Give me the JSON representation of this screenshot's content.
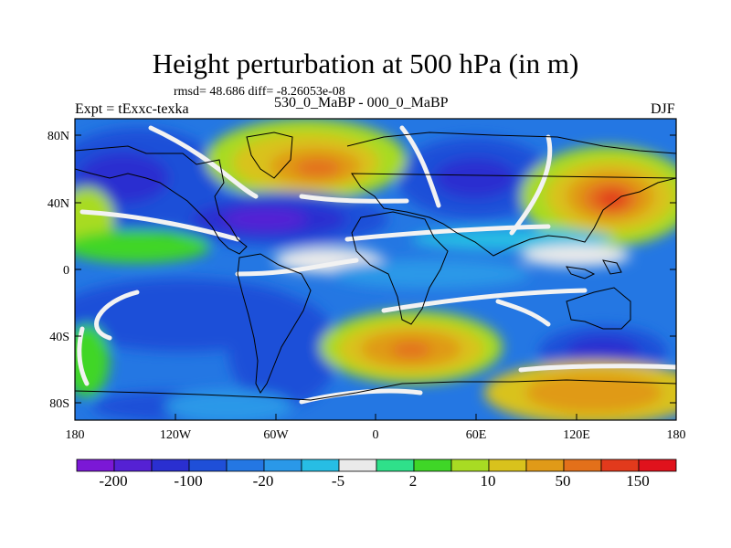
{
  "title": "Height perturbation at 500 hPa (in m)",
  "stats": "rmsd= 48.686 diff= -8.26053e-08",
  "experiment": "Expt = tExxc-texka",
  "period": "530_0_MaBP - 000_0_MaBP",
  "season": "DJF",
  "map": {
    "projection": "cylindrical-equidistant",
    "lon_range": [
      -180,
      180
    ],
    "lat_range": [
      -90,
      90
    ],
    "x_tick_labels": [
      "180",
      "120W",
      "60W",
      "0",
      "60E",
      "120E",
      "180"
    ],
    "y_tick_labels": [
      "80N",
      "40N",
      "0",
      "40S",
      "80S"
    ]
  },
  "colorbar": {
    "colors": [
      "#7b18d6",
      "#5521d4",
      "#2a2fd0",
      "#1f4fd8",
      "#2477e3",
      "#2a98e8",
      "#27bde4",
      "#eaeaea",
      "#2fe08a",
      "#3fd627",
      "#a8db23",
      "#d9c21c",
      "#e09a18",
      "#e3701a",
      "#e23a1c",
      "#e0121c"
    ],
    "labels": [
      "-200",
      "-100",
      "-20",
      "-5",
      "2",
      "10",
      "50",
      "150"
    ]
  }
}
